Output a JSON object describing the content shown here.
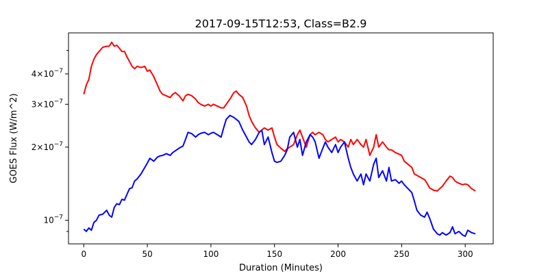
{
  "chart_data": {
    "type": "line",
    "title": "2017-09-15T12:53, Class=B2.9",
    "xlabel": "Duration (Minutes)",
    "ylabel": "GOES Flux (W/m^2)",
    "xlim": [
      -12,
      322
    ],
    "ylim": [
      8e-08,
      5.9e-07
    ],
    "yscale": "log",
    "grid": false,
    "x_ticks": [
      {
        "value": 0,
        "label": "0"
      },
      {
        "value": 50,
        "label": "50"
      },
      {
        "value": 100,
        "label": "100"
      },
      {
        "value": 150,
        "label": "150"
      },
      {
        "value": 200,
        "label": "200"
      },
      {
        "value": 250,
        "label": "250"
      },
      {
        "value": 300,
        "label": "300"
      }
    ],
    "y_ticks": [
      {
        "value": 1e-07,
        "base": "10",
        "exp": "−7"
      },
      {
        "value": 2e-07,
        "base": "2×10",
        "exp": "−7"
      },
      {
        "value": 3e-07,
        "base": "3×10",
        "exp": "−7"
      },
      {
        "value": 4e-07,
        "base": "4×10",
        "exp": "−7"
      }
    ],
    "y_minor_ticks": [
      9e-08,
      5e-07
    ],
    "series": [
      {
        "color": "#ff0000",
        "x": [
          0,
          2,
          4,
          6,
          8,
          10,
          12,
          15,
          18,
          20,
          22,
          24,
          26,
          28,
          30,
          32,
          34,
          36,
          38,
          40,
          42,
          45,
          48,
          50,
          52,
          55,
          58,
          60,
          62,
          65,
          68,
          70,
          72,
          75,
          78,
          80,
          82,
          85,
          88,
          90,
          92,
          95,
          98,
          100,
          102,
          105,
          108,
          110,
          112,
          115,
          118,
          120,
          122,
          125,
          128,
          130,
          132,
          135,
          138,
          140,
          142,
          145,
          148,
          150,
          152,
          155,
          158,
          160,
          162,
          165,
          168,
          170,
          172,
          175,
          178,
          180,
          182,
          185,
          188,
          190,
          192,
          195,
          198,
          200,
          202,
          205,
          208,
          210,
          212,
          215,
          218,
          220,
          222,
          225,
          228,
          230,
          232,
          235,
          238,
          240,
          242,
          245,
          248,
          250,
          252,
          255,
          258,
          260,
          262,
          265,
          268,
          270,
          272,
          275,
          278,
          280,
          282,
          285,
          288,
          290,
          292,
          295,
          298,
          300,
          302,
          305,
          308
        ],
        "y": [
          3.3e-07,
          3.6e-07,
          3.8e-07,
          4.3e-07,
          4.6e-07,
          4.8e-07,
          4.95e-07,
          5.15e-07,
          5.2e-07,
          5.2e-07,
          5.4e-07,
          5.2e-07,
          5.25e-07,
          5.1e-07,
          4.95e-07,
          4.95e-07,
          4.7e-07,
          4.5e-07,
          4.3e-07,
          4.2e-07,
          4.3e-07,
          4.25e-07,
          4.3e-07,
          4.1e-07,
          4.15e-07,
          3.9e-07,
          3.6e-07,
          3.4e-07,
          3.3e-07,
          3.25e-07,
          3.2e-07,
          3.3e-07,
          3.35e-07,
          3.25e-07,
          3.1e-07,
          3.25e-07,
          3.3e-07,
          3.25e-07,
          3.15e-07,
          3.05e-07,
          3e-07,
          2.95e-07,
          3e-07,
          2.95e-07,
          3e-07,
          2.95e-07,
          2.9e-07,
          2.9e-07,
          3e-07,
          3.15e-07,
          3.35e-07,
          3.4e-07,
          3.3e-07,
          3.2e-07,
          2.95e-07,
          2.7e-07,
          2.55e-07,
          2.4e-07,
          2.3e-07,
          2.35e-07,
          2.4e-07,
          2.35e-07,
          2.4e-07,
          2.2e-07,
          2.05e-07,
          1.98e-07,
          1.92e-07,
          1.97e-07,
          2e-07,
          2.05e-07,
          2.25e-07,
          2.35e-07,
          2.2e-07,
          2e-07,
          2.25e-07,
          2.3e-07,
          2.25e-07,
          2.3e-07,
          2.25e-07,
          2.15e-07,
          2.1e-07,
          2.15e-07,
          2.2e-07,
          2.1e-07,
          2.15e-07,
          2.1e-07,
          2e-07,
          2.15e-07,
          2.05e-07,
          2.15e-07,
          2.05e-07,
          2e-07,
          2.15e-07,
          1.85e-07,
          2e-07,
          2.25e-07,
          2e-07,
          2.1e-07,
          2e-07,
          1.95e-07,
          1.95e-07,
          1.9e-07,
          1.87e-07,
          1.85e-07,
          1.75e-07,
          1.7e-07,
          1.65e-07,
          1.55e-07,
          1.53e-07,
          1.5e-07,
          1.47e-07,
          1.42e-07,
          1.36e-07,
          1.33e-07,
          1.32e-07,
          1.35e-07,
          1.38e-07,
          1.45e-07,
          1.52e-07,
          1.5e-07,
          1.45e-07,
          1.42e-07,
          1.4e-07,
          1.41e-07,
          1.4e-07,
          1.35e-07,
          1.32e-07
        ]
      },
      {
        "color": "#0000ff",
        "x": [
          0,
          2,
          4,
          6,
          8,
          10,
          12,
          15,
          18,
          20,
          22,
          24,
          26,
          28,
          30,
          32,
          34,
          36,
          38,
          40,
          42,
          45,
          48,
          50,
          52,
          55,
          58,
          60,
          62,
          65,
          68,
          70,
          72,
          75,
          78,
          80,
          82,
          85,
          88,
          90,
          92,
          95,
          98,
          100,
          102,
          105,
          108,
          110,
          112,
          115,
          118,
          120,
          122,
          125,
          128,
          130,
          132,
          135,
          138,
          140,
          142,
          145,
          148,
          150,
          152,
          155,
          158,
          160,
          162,
          165,
          168,
          170,
          172,
          175,
          178,
          180,
          182,
          185,
          188,
          190,
          192,
          195,
          198,
          200,
          202,
          205,
          208,
          210,
          212,
          215,
          218,
          220,
          222,
          225,
          228,
          230,
          232,
          235,
          238,
          240,
          242,
          245,
          248,
          250,
          252,
          255,
          258,
          260,
          262,
          265,
          268,
          270,
          272,
          275,
          278,
          280,
          282,
          285,
          288,
          290,
          292,
          295,
          298,
          300,
          302,
          305,
          308
        ],
        "y": [
          9.2e-08,
          9e-08,
          9.3e-08,
          9.1e-08,
          9.8e-08,
          1e-07,
          1.05e-07,
          1.06e-07,
          1.1e-07,
          1.05e-07,
          1.03e-07,
          1.13e-07,
          1.17e-07,
          1.16e-07,
          1.22e-07,
          1.21e-07,
          1.28e-07,
          1.35e-07,
          1.36e-07,
          1.45e-07,
          1.48e-07,
          1.55e-07,
          1.65e-07,
          1.72e-07,
          1.8e-07,
          1.75e-07,
          1.82e-07,
          1.84e-07,
          1.85e-07,
          1.88e-07,
          1.85e-07,
          1.9e-07,
          1.93e-07,
          1.98e-07,
          2.02e-07,
          2.15e-07,
          2.3e-07,
          2.27e-07,
          2.2e-07,
          2.25e-07,
          2.28e-07,
          2.3e-07,
          2.25e-07,
          2.28e-07,
          2.3e-07,
          2.25e-07,
          2.2e-07,
          2.4e-07,
          2.6e-07,
          2.7e-07,
          2.65e-07,
          2.6e-07,
          2.55e-07,
          2.35e-07,
          2.2e-07,
          2.1e-07,
          2.05e-07,
          2.15e-07,
          2.3e-07,
          2.35e-07,
          2.05e-07,
          2.2e-07,
          1.9e-07,
          1.75e-07,
          1.73e-07,
          1.75e-07,
          1.85e-07,
          1.95e-07,
          2.2e-07,
          2.3e-07,
          2e-07,
          2.15e-07,
          1.85e-07,
          2.1e-07,
          2.25e-07,
          2.2e-07,
          2.1e-07,
          1.8e-07,
          1.98e-07,
          2.1e-07,
          2e-07,
          1.9e-07,
          2.05e-07,
          1.9e-07,
          2e-07,
          2.1e-07,
          1.8e-07,
          1.65e-07,
          1.55e-07,
          1.45e-07,
          1.55e-07,
          1.4e-07,
          1.55e-07,
          1.45e-07,
          1.7e-07,
          1.8e-07,
          1.5e-07,
          1.6e-07,
          1.45e-07,
          1.65e-07,
          1.45e-07,
          1.47e-07,
          1.42e-07,
          1.45e-07,
          1.4e-07,
          1.35e-07,
          1.3e-07,
          1.2e-07,
          1.1e-07,
          1.05e-07,
          1.03e-07,
          1.08e-07,
          1.02e-07,
          9.2e-08,
          8.8e-08,
          8.7e-08,
          8.9e-08,
          8.7e-08,
          8.9e-08,
          9.4e-08,
          8.8e-08,
          9e-08,
          8.7e-08,
          8.6e-08,
          9.1e-08,
          8.9e-08,
          8.8e-08
        ]
      }
    ]
  }
}
